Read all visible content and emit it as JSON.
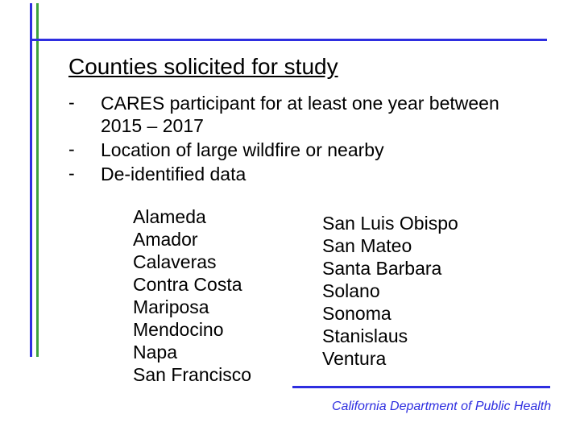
{
  "colors": {
    "accent_blue": "#2e2ee0",
    "accent_green": "#3ea23e",
    "text": "#000000",
    "background": "#ffffff"
  },
  "typography": {
    "heading_size": 28,
    "body_size": 23,
    "footer_size": 16,
    "footer_style": "italic"
  },
  "heading": "Counties solicited for study",
  "bullets": [
    "CARES participant for at least one year between 2015 – 2017",
    "Location of large wildfire or nearby",
    "De-identified data"
  ],
  "columns": {
    "left": [
      "Alameda",
      "Amador",
      "Calaveras",
      "Contra Costa",
      "Mariposa",
      "Mendocino",
      "Napa",
      "San Francisco"
    ],
    "right": [
      "San Luis Obispo",
      "San Mateo",
      "Santa Barbara",
      "Solano",
      "Sonoma",
      "Stanislaus",
      "Ventura"
    ]
  },
  "footer": "California Department of Public Health"
}
